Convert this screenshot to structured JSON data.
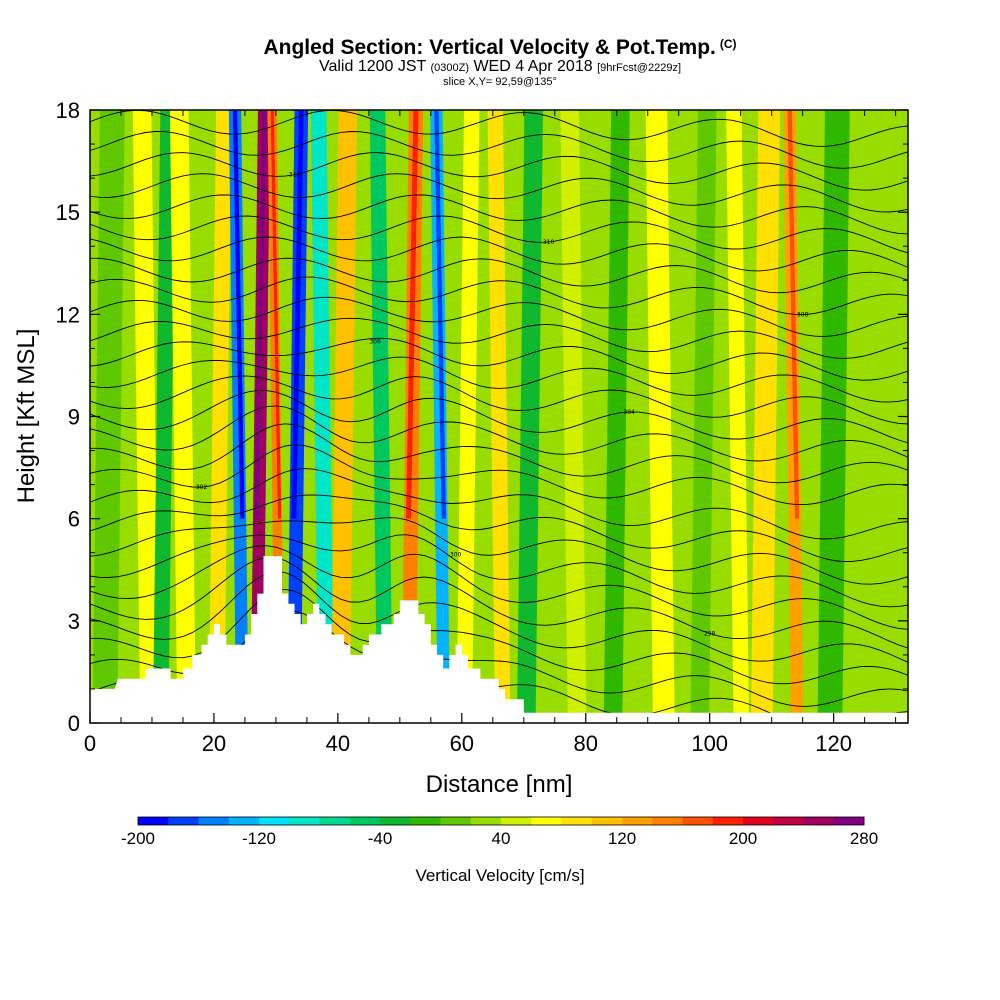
{
  "header": {
    "title_main": "Angled Section: Vertical Velocity & Pot.Temp.",
    "title_mark": "(C)",
    "valid_prefix": "Valid 1200 JST",
    "valid_z": "(0300Z)",
    "valid_date": "WED 4 Apr 2018",
    "valid_fcst": "[9hrFcst@2229z]",
    "slice": "slice X,Y= 92,59@135°"
  },
  "chart_data": {
    "type": "heatmap",
    "xlabel": "Distance [nm]",
    "ylabel": "Height [Kft MSL]",
    "xlim": [
      0,
      132
    ],
    "ylim": [
      0,
      18
    ],
    "x_ticks": [
      "0",
      "20",
      "40",
      "60",
      "80",
      "100",
      "120"
    ],
    "y_ticks": [
      "0",
      "3",
      "6",
      "9",
      "12",
      "15",
      "18"
    ],
    "colorbar": {
      "label": "Vertical Velocity [cm/s]",
      "ticks": [
        "-200",
        "-120",
        "-40",
        "40",
        "120",
        "200",
        "280"
      ],
      "min": -200,
      "max": 280,
      "step": 20,
      "colors": [
        "#0000ff",
        "#0040ff",
        "#0080ff",
        "#00b4ff",
        "#00e0ff",
        "#00e6c8",
        "#00d890",
        "#00c860",
        "#10b830",
        "#30b800",
        "#60c800",
        "#98dc00",
        "#d0f000",
        "#ffff00",
        "#ffe000",
        "#ffc000",
        "#ffa000",
        "#ff8000",
        "#ff5000",
        "#ff2000",
        "#e00020",
        "#c00040",
        "#a00060",
        "#800080"
      ]
    },
    "vertical_velocity_bands": [
      {
        "x": 3,
        "width": 4,
        "value": 10
      },
      {
        "x": 9,
        "width": 3,
        "value": 70
      },
      {
        "x": 12,
        "width": 2.5,
        "value": -40
      },
      {
        "x": 15,
        "width": 3,
        "value": 60
      },
      {
        "x": 21,
        "width": 2.5,
        "value": 90
      },
      {
        "x": 24,
        "width": 2,
        "value": -150
      },
      {
        "x": 27.5,
        "width": 2,
        "value": 240
      },
      {
        "x": 30,
        "width": 1.5,
        "value": 140
      },
      {
        "x": 33.5,
        "width": 2.2,
        "value": -180
      },
      {
        "x": 37.5,
        "width": 2.5,
        "value": -90
      },
      {
        "x": 41,
        "width": 3,
        "value": 110
      },
      {
        "x": 47,
        "width": 2.5,
        "value": -60
      },
      {
        "x": 52,
        "width": 2.3,
        "value": 150
      },
      {
        "x": 56.5,
        "width": 2,
        "value": -130
      },
      {
        "x": 61,
        "width": 2.5,
        "value": 60
      },
      {
        "x": 66,
        "width": 2.5,
        "value": 80
      },
      {
        "x": 71,
        "width": 3,
        "value": -30
      },
      {
        "x": 78,
        "width": 3,
        "value": 50
      },
      {
        "x": 85,
        "width": 3,
        "value": -20
      },
      {
        "x": 92,
        "width": 3.5,
        "value": 60
      },
      {
        "x": 99,
        "width": 3,
        "value": 10
      },
      {
        "x": 104.5,
        "width": 2.5,
        "value": 70
      },
      {
        "x": 109,
        "width": 3.5,
        "value": 90
      },
      {
        "x": 113.5,
        "width": 2,
        "value": 130
      },
      {
        "x": 120,
        "width": 4,
        "value": -20
      },
      {
        "x": 127,
        "width": 3,
        "value": 30
      }
    ],
    "terrain_kft": [
      [
        0,
        1.0
      ],
      [
        4,
        1.0
      ],
      [
        4.5,
        1.3
      ],
      [
        9,
        1.3
      ],
      [
        9,
        1.6
      ],
      [
        13,
        1.6
      ],
      [
        13,
        1.3
      ],
      [
        15,
        1.3
      ],
      [
        15,
        1.6
      ],
      [
        16.5,
        1.6
      ],
      [
        16.5,
        2.0
      ],
      [
        18,
        2.0
      ],
      [
        18,
        2.3
      ],
      [
        19,
        2.3
      ],
      [
        19,
        2.6
      ],
      [
        20,
        2.6
      ],
      [
        20,
        2.9
      ],
      [
        21,
        2.9
      ],
      [
        21,
        2.6
      ],
      [
        22,
        2.6
      ],
      [
        22,
        2.3
      ],
      [
        25,
        2.3
      ],
      [
        25,
        2.6
      ],
      [
        26,
        2.6
      ],
      [
        26,
        3.2
      ],
      [
        27,
        3.2
      ],
      [
        27,
        3.8
      ],
      [
        28,
        3.8
      ],
      [
        28,
        4.9
      ],
      [
        31,
        4.9
      ],
      [
        31,
        3.8
      ],
      [
        32,
        3.8
      ],
      [
        32,
        3.5
      ],
      [
        33,
        3.5
      ],
      [
        33,
        3.2
      ],
      [
        34,
        3.2
      ],
      [
        34,
        2.9
      ],
      [
        35,
        2.9
      ],
      [
        35,
        3.2
      ],
      [
        36,
        3.2
      ],
      [
        36,
        3.5
      ],
      [
        37,
        3.5
      ],
      [
        37,
        3.2
      ],
      [
        38,
        3.2
      ],
      [
        38,
        2.9
      ],
      [
        39,
        2.9
      ],
      [
        39,
        2.6
      ],
      [
        41,
        2.6
      ],
      [
        41,
        2.3
      ],
      [
        42,
        2.3
      ],
      [
        42,
        2.0
      ],
      [
        44,
        2.0
      ],
      [
        44,
        2.3
      ],
      [
        45,
        2.3
      ],
      [
        45,
        2.6
      ],
      [
        47,
        2.6
      ],
      [
        47,
        2.9
      ],
      [
        49,
        2.9
      ],
      [
        49,
        3.2
      ],
      [
        50,
        3.2
      ],
      [
        50,
        3.6
      ],
      [
        53,
        3.6
      ],
      [
        53,
        3.2
      ],
      [
        54,
        3.2
      ],
      [
        54,
        2.9
      ],
      [
        55,
        2.9
      ],
      [
        55,
        2.3
      ],
      [
        56,
        2.3
      ],
      [
        56,
        2.0
      ],
      [
        57,
        2.0
      ],
      [
        57,
        1.6
      ],
      [
        58,
        1.6
      ],
      [
        58,
        2.0
      ],
      [
        59,
        2.0
      ],
      [
        59,
        2.3
      ],
      [
        60,
        2.3
      ],
      [
        60,
        2.0
      ],
      [
        61,
        2.0
      ],
      [
        61,
        1.6
      ],
      [
        63,
        1.6
      ],
      [
        63,
        1.3
      ],
      [
        66,
        1.3
      ],
      [
        66,
        1.0
      ],
      [
        67,
        1.0
      ],
      [
        67,
        0.7
      ],
      [
        70,
        0.7
      ],
      [
        70,
        0.3
      ],
      [
        132,
        0.3
      ]
    ],
    "contour_labels": [
      "296",
      "298",
      "300",
      "302",
      "304",
      "306",
      "308",
      "310",
      "312",
      "314",
      "316",
      "318",
      "320"
    ]
  }
}
